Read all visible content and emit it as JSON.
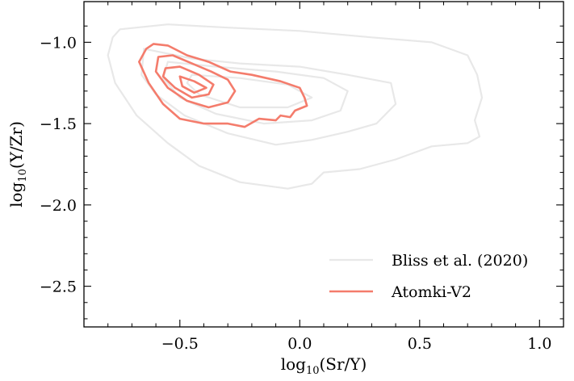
{
  "chart_data": {
    "type": "contour",
    "xlabel_main": "log",
    "xlabel_sub": "10",
    "xlabel_rest": "(Sr/Y)",
    "ylabel_main": "log",
    "ylabel_sub": "10",
    "ylabel_rest": "(Y/Zr)",
    "xlim": [
      -0.9,
      1.1
    ],
    "ylim": [
      -2.75,
      -0.75
    ],
    "x_ticks": [
      {
        "value": -0.5,
        "label": "−0.5"
      },
      {
        "value": 0.0,
        "label": "0.0"
      },
      {
        "value": 0.5,
        "label": "0.5"
      },
      {
        "value": 1.0,
        "label": "1.0"
      }
    ],
    "y_ticks": [
      {
        "value": -1.0,
        "label": "−1.0"
      },
      {
        "value": -1.5,
        "label": "−1.5"
      },
      {
        "value": -2.0,
        "label": "−2.0"
      },
      {
        "value": -2.5,
        "label": "−2.5"
      }
    ],
    "legend_position": "lower-right",
    "series": [
      {
        "name": "Bliss et al. (2020)",
        "color": "#e8e8e8",
        "contours": [
          [
            [
              -0.75,
              -0.92
            ],
            [
              -0.55,
              -0.89
            ],
            [
              -0.3,
              -0.91
            ],
            [
              0.0,
              -0.93
            ],
            [
              0.3,
              -0.97
            ],
            [
              0.55,
              -1.0
            ],
            [
              0.7,
              -1.08
            ],
            [
              0.74,
              -1.2
            ],
            [
              0.76,
              -1.34
            ],
            [
              0.73,
              -1.48
            ],
            [
              0.75,
              -1.58
            ],
            [
              0.7,
              -1.62
            ],
            [
              0.55,
              -1.64
            ],
            [
              0.4,
              -1.72
            ],
            [
              0.25,
              -1.78
            ],
            [
              0.1,
              -1.8
            ],
            [
              0.05,
              -1.87
            ],
            [
              -0.05,
              -1.9
            ],
            [
              -0.25,
              -1.86
            ],
            [
              -0.42,
              -1.76
            ],
            [
              -0.55,
              -1.62
            ],
            [
              -0.68,
              -1.45
            ],
            [
              -0.77,
              -1.25
            ],
            [
              -0.8,
              -1.08
            ],
            [
              -0.78,
              -0.97
            ],
            [
              -0.75,
              -0.92
            ]
          ],
          [
            [
              -0.65,
              -1.04
            ],
            [
              -0.45,
              -1.1
            ],
            [
              -0.25,
              -1.13
            ],
            [
              0.0,
              -1.15
            ],
            [
              0.2,
              -1.2
            ],
            [
              0.38,
              -1.25
            ],
            [
              0.4,
              -1.38
            ],
            [
              0.32,
              -1.5
            ],
            [
              0.2,
              -1.55
            ],
            [
              0.05,
              -1.6
            ],
            [
              -0.1,
              -1.63
            ],
            [
              -0.3,
              -1.56
            ],
            [
              -0.48,
              -1.45
            ],
            [
              -0.6,
              -1.32
            ],
            [
              -0.66,
              -1.2
            ],
            [
              -0.65,
              -1.04
            ]
          ],
          [
            [
              -0.55,
              -1.12
            ],
            [
              -0.35,
              -1.15
            ],
            [
              -0.1,
              -1.18
            ],
            [
              0.1,
              -1.22
            ],
            [
              0.2,
              -1.3
            ],
            [
              0.17,
              -1.42
            ],
            [
              0.05,
              -1.48
            ],
            [
              -0.15,
              -1.5
            ],
            [
              -0.35,
              -1.44
            ],
            [
              -0.5,
              -1.34
            ],
            [
              -0.57,
              -1.22
            ],
            [
              -0.55,
              -1.12
            ]
          ],
          [
            [
              -0.45,
              -1.2
            ],
            [
              -0.25,
              -1.22
            ],
            [
              -0.05,
              -1.26
            ],
            [
              0.05,
              -1.34
            ],
            [
              -0.05,
              -1.4
            ],
            [
              -0.25,
              -1.4
            ],
            [
              -0.42,
              -1.32
            ],
            [
              -0.47,
              -1.25
            ],
            [
              -0.45,
              -1.2
            ]
          ]
        ]
      },
      {
        "name": "Atomki-V2",
        "color": "#f47c6c",
        "contours": [
          [
            [
              -0.64,
              -1.04
            ],
            [
              -0.61,
              -1.01
            ],
            [
              -0.55,
              -1.02
            ],
            [
              -0.47,
              -1.08
            ],
            [
              -0.38,
              -1.12
            ],
            [
              -0.29,
              -1.18
            ],
            [
              -0.2,
              -1.2
            ],
            [
              -0.08,
              -1.24
            ],
            [
              0.0,
              -1.28
            ],
            [
              0.02,
              -1.34
            ],
            [
              0.03,
              -1.39
            ],
            [
              -0.02,
              -1.42
            ],
            [
              -0.04,
              -1.46
            ],
            [
              -0.08,
              -1.45
            ],
            [
              -0.1,
              -1.48
            ],
            [
              -0.17,
              -1.47
            ],
            [
              -0.23,
              -1.52
            ],
            [
              -0.3,
              -1.5
            ],
            [
              -0.4,
              -1.5
            ],
            [
              -0.5,
              -1.47
            ],
            [
              -0.57,
              -1.38
            ],
            [
              -0.63,
              -1.25
            ],
            [
              -0.67,
              -1.12
            ],
            [
              -0.64,
              -1.04
            ]
          ],
          [
            [
              -0.59,
              -1.09
            ],
            [
              -0.53,
              -1.08
            ],
            [
              -0.45,
              -1.13
            ],
            [
              -0.37,
              -1.18
            ],
            [
              -0.3,
              -1.23
            ],
            [
              -0.27,
              -1.3
            ],
            [
              -0.3,
              -1.37
            ],
            [
              -0.38,
              -1.4
            ],
            [
              -0.47,
              -1.36
            ],
            [
              -0.55,
              -1.28
            ],
            [
              -0.6,
              -1.18
            ],
            [
              -0.59,
              -1.09
            ]
          ],
          [
            [
              -0.56,
              -1.16
            ],
            [
              -0.5,
              -1.15
            ],
            [
              -0.42,
              -1.2
            ],
            [
              -0.36,
              -1.26
            ],
            [
              -0.38,
              -1.32
            ],
            [
              -0.45,
              -1.34
            ],
            [
              -0.52,
              -1.28
            ],
            [
              -0.57,
              -1.21
            ],
            [
              -0.56,
              -1.16
            ]
          ],
          [
            [
              -0.5,
              -1.21
            ],
            [
              -0.44,
              -1.24
            ],
            [
              -0.39,
              -1.28
            ],
            [
              -0.44,
              -1.31
            ],
            [
              -0.49,
              -1.27
            ],
            [
              -0.5,
              -1.21
            ]
          ]
        ]
      }
    ]
  }
}
